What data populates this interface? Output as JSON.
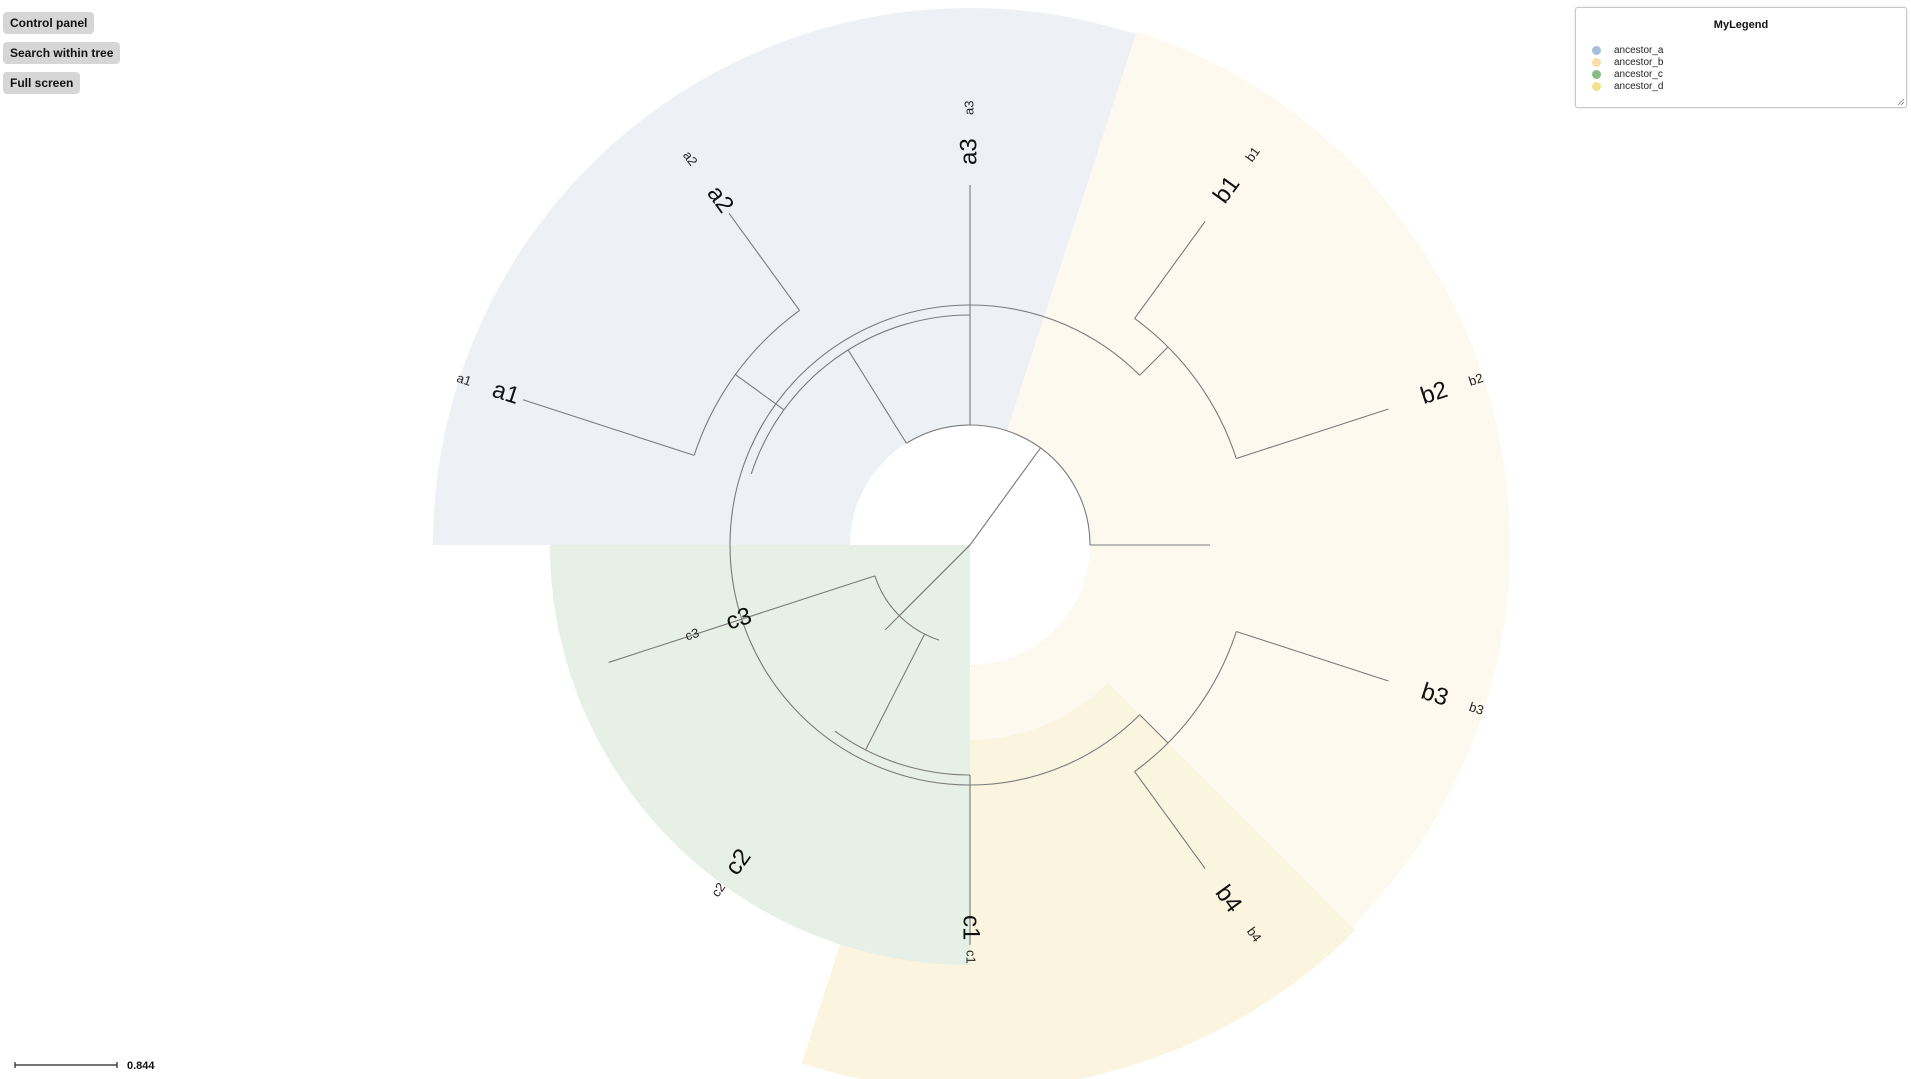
{
  "buttons": {
    "control_panel": "Control panel",
    "search_within_tree": "Search within tree",
    "full_screen": "Full screen"
  },
  "legend": {
    "title": "MyLegend",
    "items": [
      {
        "label": "ancestor_a",
        "color": "#a6bfdb"
      },
      {
        "label": "ancestor_b",
        "color": "#fbdca8"
      },
      {
        "label": "ancestor_c",
        "color": "#84bc84"
      },
      {
        "label": "ancestor_d",
        "color": "#f1e18a"
      }
    ]
  },
  "scale_bar": {
    "label": "0.844"
  },
  "tree": {
    "clades": [
      {
        "name": "ancestor_a",
        "fill": "#edf1f6"
      },
      {
        "name": "ancestor_b",
        "fill": "#fdf9ee"
      },
      {
        "name": "ancestor_c",
        "fill": "#e7f0e7"
      },
      {
        "name": "ancestor_d",
        "fill": "#fbf4de"
      }
    ],
    "leaves": [
      {
        "name": "a1",
        "label": "a1"
      },
      {
        "name": "a2",
        "label": "a2"
      },
      {
        "name": "a3",
        "label": "a3"
      },
      {
        "name": "b1",
        "label": "b1"
      },
      {
        "name": "b2",
        "label": "b2"
      },
      {
        "name": "b3",
        "label": "b3"
      },
      {
        "name": "b4",
        "label": "b4"
      },
      {
        "name": "c1",
        "label": "c1"
      },
      {
        "name": "c2",
        "label": "c2"
      },
      {
        "name": "c3",
        "label": "c3"
      }
    ]
  }
}
